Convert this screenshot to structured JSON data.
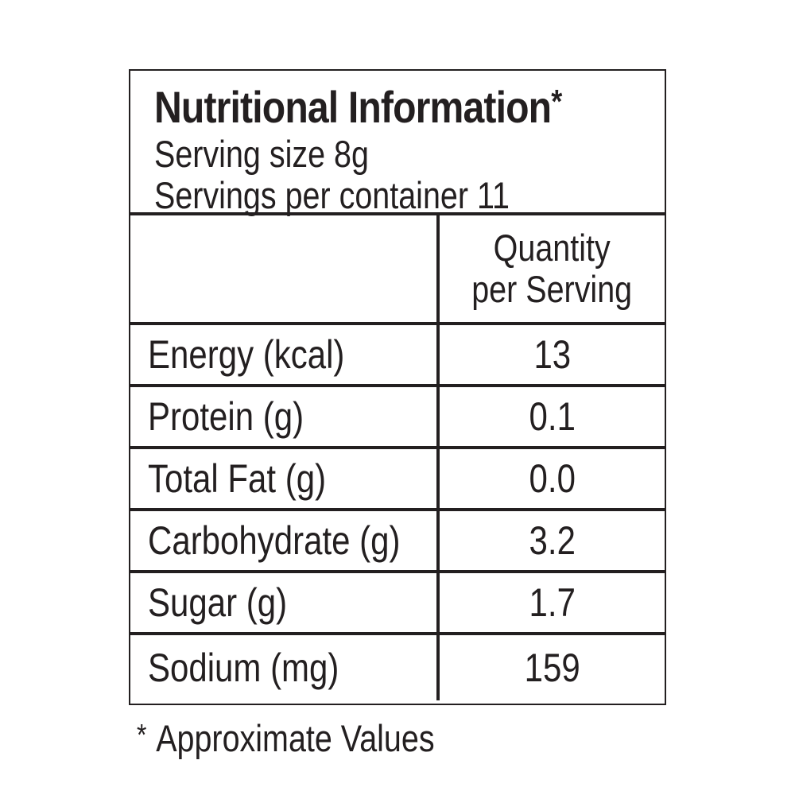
{
  "header": {
    "title": "Nutritional Information",
    "title_asterisk": "*",
    "serving_size": "Serving size 8g",
    "servings_per_container": "Servings per container 11"
  },
  "table": {
    "column_header_line1": "Quantity",
    "column_header_line2": "per Serving",
    "rows": [
      {
        "label": "Energy (kcal)",
        "value": "13"
      },
      {
        "label": "Protein (g)",
        "value": "0.1"
      },
      {
        "label": "Total Fat (g)",
        "value": "0.0"
      },
      {
        "label": "Carbohydrate (g)",
        "value": "3.2"
      },
      {
        "label": "Sugar (g)",
        "value": "1.7"
      },
      {
        "label": "Sodium (mg)",
        "value": "159"
      }
    ]
  },
  "footnote": {
    "asterisk": "*",
    "text": "Approximate Values"
  }
}
